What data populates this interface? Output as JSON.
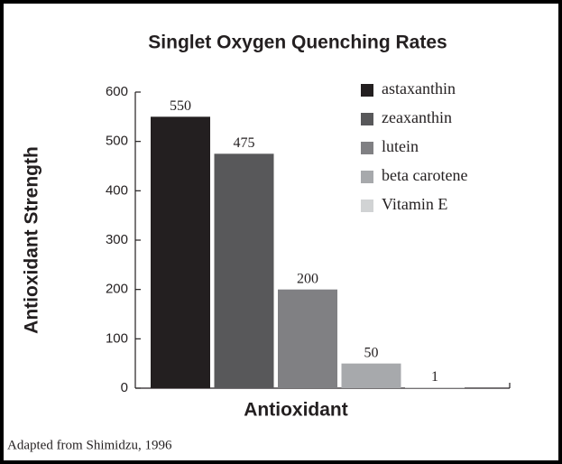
{
  "chart_data": {
    "type": "bar",
    "title": "Singlet Oxygen Quenching Rates",
    "ylabel": "Antioxidant Strength",
    "xlabel": "Antioxidant",
    "categories": [
      "astaxanthin",
      "zeaxanthin",
      "lutein",
      "beta carotene",
      "Vitamin E"
    ],
    "values": [
      550,
      475,
      200,
      50,
      1
    ],
    "colors": [
      "#231f20",
      "#58585a",
      "#808083",
      "#a7a9ac",
      "#d1d3d4"
    ],
    "ylim": [
      0,
      600
    ],
    "yticks": [
      0,
      100,
      200,
      300,
      400,
      500,
      600
    ],
    "legend": "upper right",
    "source": "Adapted from Shimidzu, 1996"
  }
}
